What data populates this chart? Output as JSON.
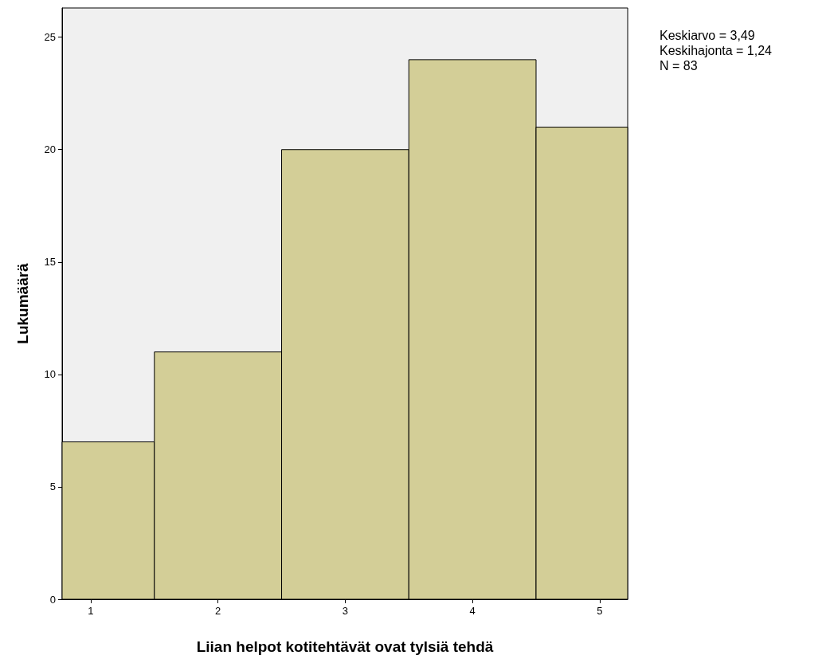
{
  "chart_data": {
    "type": "histogram",
    "xlabel": "Liian helpot kotitehtävät ovat tylsiä tehdä",
    "ylabel": "Lukumäärä",
    "bins": [
      0.775,
      1.5,
      2.5,
      3.5,
      4.5,
      5.22
    ],
    "values": [
      7,
      11,
      20,
      24,
      21
    ],
    "color": "#d3ce97",
    "xlim": [
      0.775,
      5.22
    ],
    "xticks": [
      1,
      2,
      3,
      4,
      5
    ],
    "ylim": [
      0,
      26.3
    ],
    "yticks": [
      0,
      5,
      10,
      15,
      20,
      25
    ],
    "grid": false,
    "annotations": [
      "Keskiarvo = 3,49",
      "Keskihajonta = 1,24",
      "N = 83"
    ]
  }
}
